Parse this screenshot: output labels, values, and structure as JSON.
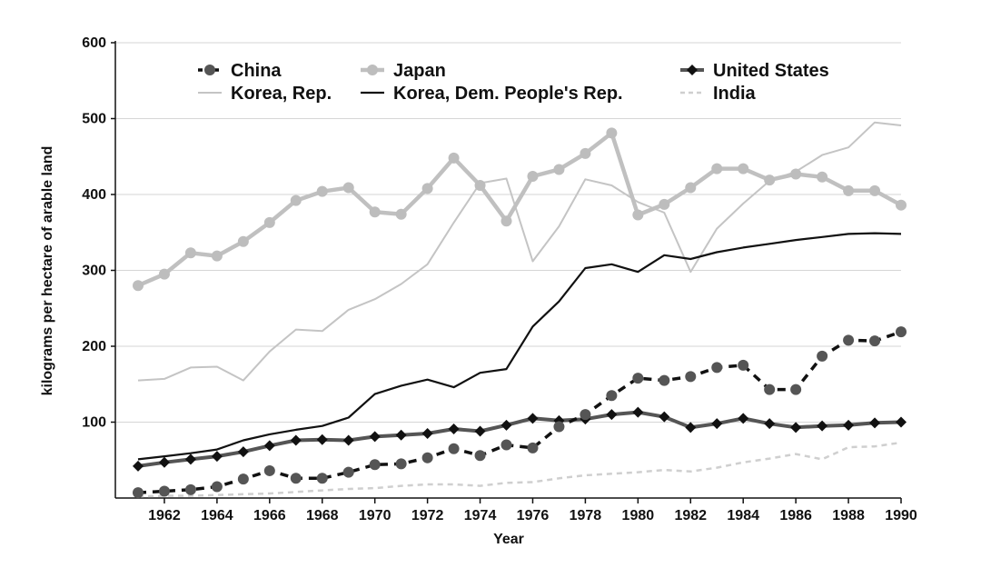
{
  "chart_data": {
    "type": "line",
    "title": "",
    "xlabel": "Year",
    "ylabel": "kilograms per hectare of arable land",
    "xlim": [
      1961,
      1990
    ],
    "ylim": [
      0,
      600
    ],
    "x_ticks": [
      1962,
      1964,
      1966,
      1968,
      1970,
      1972,
      1974,
      1976,
      1978,
      1980,
      1982,
      1984,
      1986,
      1988,
      1990
    ],
    "y_ticks": [
      100,
      200,
      300,
      400,
      500,
      600
    ],
    "grid": "horizontal",
    "legend_position": "top",
    "x": [
      1961,
      1962,
      1963,
      1964,
      1965,
      1966,
      1967,
      1968,
      1969,
      1970,
      1971,
      1972,
      1973,
      1974,
      1975,
      1976,
      1977,
      1978,
      1979,
      1980,
      1981,
      1982,
      1983,
      1984,
      1985,
      1986,
      1987,
      1988,
      1989,
      1990
    ],
    "series": [
      {
        "name": "China",
        "color": "#555555",
        "line": "dashed-black",
        "marker": "circle",
        "values": [
          7,
          9,
          11,
          15,
          25,
          36,
          26,
          26,
          34,
          44,
          45,
          53,
          65,
          56,
          70,
          66,
          94,
          110,
          135,
          158,
          155,
          160,
          172,
          175,
          143,
          143,
          187,
          208,
          207,
          219
        ]
      },
      {
        "name": "Japan",
        "color": "#bbbbbb",
        "line": "solid",
        "marker": "circle",
        "values": [
          280,
          295,
          323,
          319,
          338,
          363,
          392,
          404,
          409,
          377,
          374,
          408,
          448,
          412,
          365,
          424,
          433,
          454,
          481,
          373,
          387,
          409,
          434,
          434,
          419,
          427,
          423,
          405,
          405,
          386
        ]
      },
      {
        "name": "United States",
        "color": "#555555",
        "line": "solid-thick",
        "marker": "diamond",
        "values": [
          42,
          47,
          51,
          55,
          61,
          69,
          76,
          77,
          76,
          81,
          83,
          85,
          91,
          88,
          96,
          105,
          102,
          104,
          110,
          113,
          107,
          93,
          98,
          105,
          98,
          93,
          95,
          96,
          99,
          100
        ]
      },
      {
        "name": "Korea, Rep.",
        "color": "#c4c4c4",
        "line": "solid-thin",
        "values": [
          155,
          157,
          172,
          173,
          155,
          193,
          222,
          220,
          248,
          262,
          282,
          308,
          363,
          415,
          421,
          312,
          358,
          420,
          412,
          390,
          376,
          298,
          355,
          388,
          418,
          430,
          452,
          462,
          495,
          491
        ]
      },
      {
        "name": "Korea, Dem. People's Rep.",
        "color": "#111111",
        "line": "solid",
        "values": [
          51,
          55,
          59,
          64,
          76,
          84,
          90,
          95,
          106,
          137,
          148,
          156,
          146,
          165,
          170,
          226,
          259,
          303,
          308,
          298,
          320,
          315,
          324,
          330,
          335,
          340,
          344,
          348,
          349,
          348
        ]
      },
      {
        "name": "India",
        "color": "#c8c8c8",
        "line": "dashed-light",
        "values": [
          2,
          3,
          3,
          4,
          5,
          6,
          8,
          10,
          12,
          13,
          16,
          18,
          18,
          16,
          20,
          21,
          26,
          30,
          32,
          34,
          37,
          35,
          40,
          47,
          52,
          58,
          51,
          67,
          68,
          73
        ]
      }
    ]
  }
}
